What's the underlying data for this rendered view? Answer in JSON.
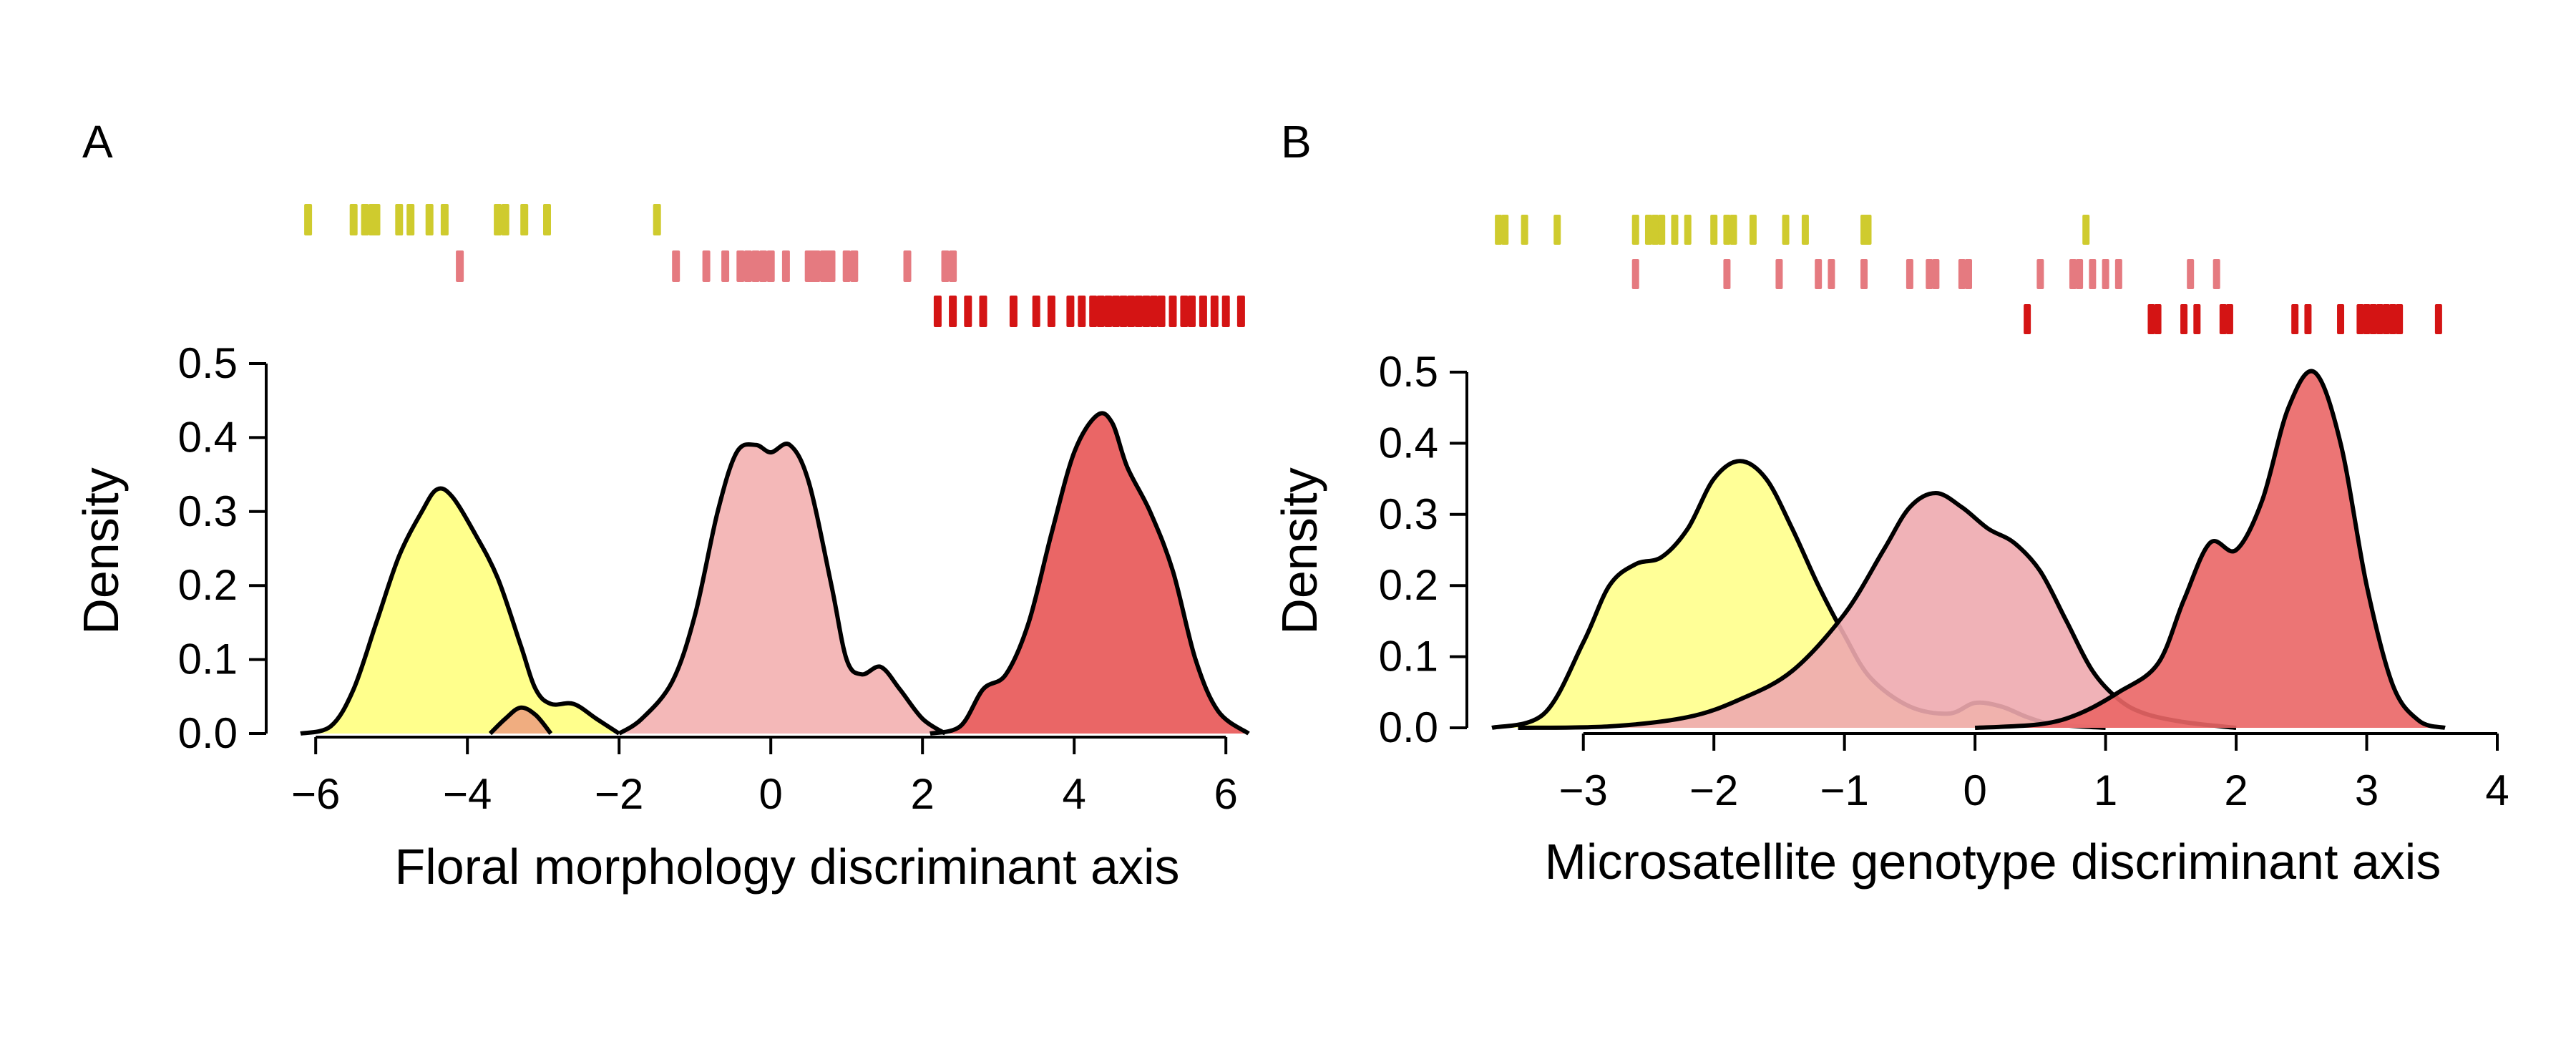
{
  "chart_data": [
    {
      "type": "density",
      "panel": "A",
      "xlabel": "Floral morphology discriminant axis",
      "ylabel": "Density",
      "xlim": [
        -6.2,
        6.3
      ],
      "ylim": [
        0,
        0.5
      ],
      "xticks": [
        -6,
        -4,
        -2,
        0,
        2,
        4,
        6
      ],
      "yticks": [
        0.0,
        0.1,
        0.2,
        0.3,
        0.4,
        0.5
      ],
      "xtick_labels": [
        "−6",
        "−4",
        "−2",
        "0",
        "2",
        "4",
        "6"
      ],
      "ytick_labels": [
        "0.0",
        "0.1",
        "0.2",
        "0.3",
        "0.4",
        "0.5"
      ],
      "series": [
        {
          "color": "#ffff8c",
          "rug_color": "#cfcb2e",
          "rug_row": 0,
          "density": [
            [
              -6.2,
              0.0
            ],
            [
              -5.8,
              0.01
            ],
            [
              -5.5,
              0.06
            ],
            [
              -5.2,
              0.15
            ],
            [
              -4.9,
              0.24
            ],
            [
              -4.6,
              0.3
            ],
            [
              -4.4,
              0.33
            ],
            [
              -4.2,
              0.32
            ],
            [
              -3.9,
              0.27
            ],
            [
              -3.6,
              0.21
            ],
            [
              -3.3,
              0.12
            ],
            [
              -3.1,
              0.06
            ],
            [
              -2.9,
              0.04
            ],
            [
              -2.6,
              0.04
            ],
            [
              -2.3,
              0.02
            ],
            [
              -2.0,
              0.0
            ]
          ],
          "rug": [
            -6.1,
            -5.5,
            -5.35,
            -5.25,
            -5.2,
            -4.9,
            -4.75,
            -4.5,
            -4.3,
            -3.6,
            -3.5,
            -3.25,
            -2.95,
            -1.5
          ]
        },
        {
          "color": "#f4b8b8",
          "rug_color": "#e57a80",
          "rug_row": 1,
          "density": [
            [
              -2.0,
              0.0
            ],
            [
              -1.7,
              0.02
            ],
            [
              -1.3,
              0.07
            ],
            [
              -1.0,
              0.16
            ],
            [
              -0.7,
              0.3
            ],
            [
              -0.45,
              0.38
            ],
            [
              -0.2,
              0.39
            ],
            [
              0.0,
              0.38
            ],
            [
              0.25,
              0.39
            ],
            [
              0.5,
              0.34
            ],
            [
              0.8,
              0.2
            ],
            [
              1.0,
              0.1
            ],
            [
              1.2,
              0.08
            ],
            [
              1.45,
              0.09
            ],
            [
              1.7,
              0.06
            ],
            [
              2.0,
              0.02
            ],
            [
              2.3,
              0.0
            ]
          ],
          "rug": [
            -4.1,
            -1.25,
            -0.85,
            -0.6,
            -0.4,
            -0.3,
            -0.2,
            -0.1,
            0.0,
            0.2,
            0.5,
            0.55,
            0.6,
            0.7,
            0.75,
            0.8,
            1.0,
            1.1,
            1.8,
            2.3,
            2.4
          ]
        },
        {
          "color": "#ea6666",
          "rug_color": "#d41414",
          "rug_row": 2,
          "density": [
            [
              2.1,
              0.0
            ],
            [
              2.5,
              0.01
            ],
            [
              2.8,
              0.06
            ],
            [
              3.1,
              0.08
            ],
            [
              3.4,
              0.15
            ],
            [
              3.7,
              0.27
            ],
            [
              4.0,
              0.38
            ],
            [
              4.3,
              0.43
            ],
            [
              4.5,
              0.42
            ],
            [
              4.7,
              0.36
            ],
            [
              5.0,
              0.3
            ],
            [
              5.3,
              0.22
            ],
            [
              5.6,
              0.1
            ],
            [
              5.9,
              0.03
            ],
            [
              6.3,
              0.0
            ]
          ],
          "rug": [
            2.2,
            2.4,
            2.6,
            2.8,
            3.2,
            3.5,
            3.7,
            3.95,
            4.1,
            4.25,
            4.35,
            4.45,
            4.55,
            4.65,
            4.75,
            4.85,
            4.95,
            5.05,
            5.15,
            5.3,
            5.45,
            5.55,
            5.7,
            5.85,
            6.0,
            6.2
          ]
        },
        {
          "color": "#f0ad80",
          "role": "overlap",
          "density": [
            [
              -3.7,
              0.0
            ],
            [
              -3.5,
              0.02
            ],
            [
              -3.3,
              0.035
            ],
            [
              -3.1,
              0.025
            ],
            [
              -2.9,
              0.0
            ]
          ]
        }
      ]
    },
    {
      "type": "density",
      "panel": "B",
      "xlabel": "Microsatellite genotype discriminant axis",
      "ylabel": "Density",
      "xlim": [
        -3.7,
        4.0
      ],
      "ylim": [
        0,
        0.5
      ],
      "xticks": [
        -3,
        -2,
        -1,
        0,
        1,
        2,
        3,
        4
      ],
      "yticks": [
        0.0,
        0.1,
        0.2,
        0.3,
        0.4,
        0.5
      ],
      "xtick_labels": [
        "−3",
        "−2",
        "−1",
        "0",
        "1",
        "2",
        "3",
        "4"
      ],
      "ytick_labels": [
        "0.0",
        "0.1",
        "0.2",
        "0.3",
        "0.4",
        "0.5"
      ],
      "series": [
        {
          "color": "#ffff8c",
          "rug_color": "#cfcb2e",
          "rug_row": 0,
          "density": [
            [
              -3.7,
              0.0
            ],
            [
              -3.3,
              0.02
            ],
            [
              -3.0,
              0.12
            ],
            [
              -2.8,
              0.2
            ],
            [
              -2.6,
              0.23
            ],
            [
              -2.4,
              0.24
            ],
            [
              -2.2,
              0.28
            ],
            [
              -2.0,
              0.35
            ],
            [
              -1.8,
              0.375
            ],
            [
              -1.6,
              0.35
            ],
            [
              -1.4,
              0.28
            ],
            [
              -1.2,
              0.2
            ],
            [
              -1.0,
              0.13
            ],
            [
              -0.8,
              0.07
            ],
            [
              -0.5,
              0.03
            ],
            [
              -0.2,
              0.02
            ],
            [
              0.0,
              0.035
            ],
            [
              0.2,
              0.03
            ],
            [
              0.4,
              0.015
            ],
            [
              0.6,
              0.005
            ],
            [
              1.0,
              0.0
            ]
          ],
          "rug": [
            -3.65,
            -3.6,
            -3.45,
            -3.2,
            -2.6,
            -2.5,
            -2.45,
            -2.4,
            -2.3,
            -2.2,
            -2.0,
            -1.9,
            -1.85,
            -1.7,
            -1.45,
            -1.3,
            -0.85,
            -0.82,
            0.85
          ]
        },
        {
          "color": "#eeaaaf",
          "rug_color": "#e57a80",
          "rug_row": 1,
          "density": [
            [
              -3.5,
              0.0
            ],
            [
              -2.8,
              0.002
            ],
            [
              -2.2,
              0.015
            ],
            [
              -1.8,
              0.04
            ],
            [
              -1.4,
              0.08
            ],
            [
              -1.0,
              0.16
            ],
            [
              -0.7,
              0.25
            ],
            [
              -0.5,
              0.31
            ],
            [
              -0.3,
              0.33
            ],
            [
              -0.1,
              0.31
            ],
            [
              0.1,
              0.28
            ],
            [
              0.3,
              0.26
            ],
            [
              0.5,
              0.22
            ],
            [
              0.7,
              0.15
            ],
            [
              0.9,
              0.08
            ],
            [
              1.1,
              0.04
            ],
            [
              1.3,
              0.02
            ],
            [
              1.6,
              0.008
            ],
            [
              2.0,
              0.0
            ]
          ],
          "rug": [
            -2.6,
            -1.9,
            -1.5,
            -1.2,
            -1.1,
            -0.85,
            -0.5,
            -0.35,
            -0.3,
            -0.1,
            -0.05,
            0.5,
            0.75,
            0.8,
            0.9,
            1.0,
            1.1,
            1.65,
            1.85
          ]
        },
        {
          "color": "#ea6666",
          "rug_color": "#d41414",
          "rug_row": 2,
          "density": [
            [
              0.0,
              0.0
            ],
            [
              0.5,
              0.005
            ],
            [
              0.8,
              0.02
            ],
            [
              1.1,
              0.05
            ],
            [
              1.4,
              0.09
            ],
            [
              1.6,
              0.18
            ],
            [
              1.8,
              0.26
            ],
            [
              2.0,
              0.25
            ],
            [
              2.2,
              0.32
            ],
            [
              2.4,
              0.45
            ],
            [
              2.6,
              0.5
            ],
            [
              2.8,
              0.4
            ],
            [
              3.0,
              0.2
            ],
            [
              3.2,
              0.06
            ],
            [
              3.4,
              0.01
            ],
            [
              3.6,
              0.0
            ]
          ],
          "rug": [
            0.4,
            1.35,
            1.4,
            1.6,
            1.7,
            1.9,
            1.95,
            2.45,
            2.55,
            2.8,
            2.95,
            3.0,
            3.05,
            3.1,
            3.15,
            3.2,
            3.25,
            3.55
          ]
        }
      ]
    }
  ]
}
